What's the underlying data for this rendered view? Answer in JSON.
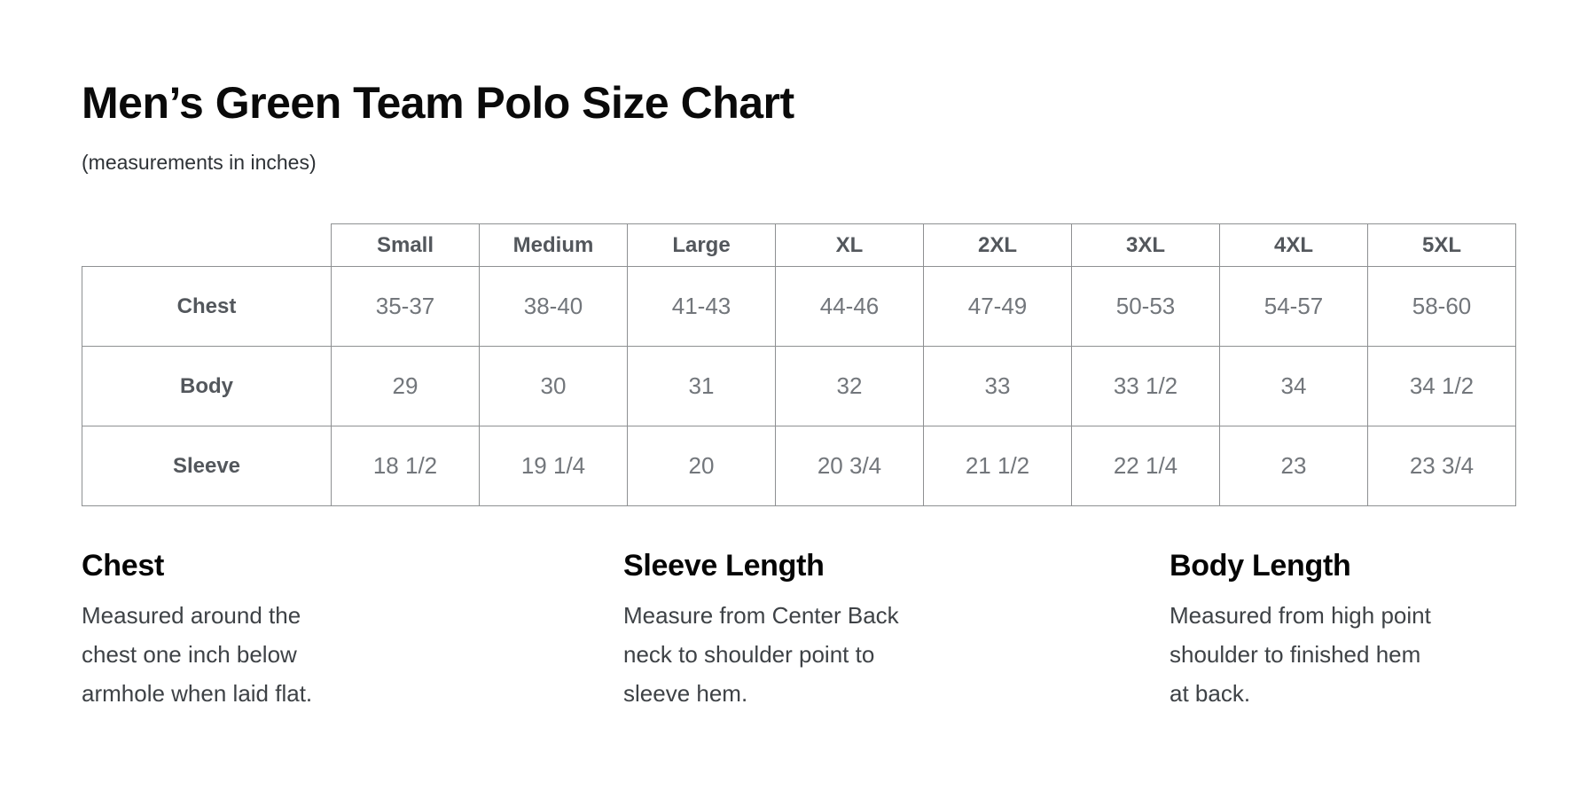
{
  "header": {
    "title": "Men’s Green Team Polo Size Chart",
    "subtitle": "(measurements in inches)"
  },
  "table": {
    "columns": [
      "Small",
      "Medium",
      "Large",
      "XL",
      "2XL",
      "3XL",
      "4XL",
      "5XL"
    ],
    "rows": [
      {
        "label": "Chest",
        "values": [
          "35-37",
          "38-40",
          "41-43",
          "44-46",
          "47-49",
          "50-53",
          "54-57",
          "58-60"
        ]
      },
      {
        "label": "Body",
        "values": [
          "29",
          "30",
          "31",
          "32",
          "33",
          "33 1/2",
          "34",
          "34 1/2"
        ]
      },
      {
        "label": "Sleeve",
        "values": [
          "18 1/2",
          "19 1/4",
          "20",
          "20 3/4",
          "21 1/2",
          "22 1/4",
          "23",
          "23 3/4"
        ]
      }
    ]
  },
  "guides": [
    {
      "title": "Chest",
      "description": "Measured around the\nchest one inch below\narmhole when laid flat."
    },
    {
      "title": "Sleeve Length",
      "description": "Measure from Center Back\nneck to shoulder point to\nsleeve hem."
    },
    {
      "title": "Body Length",
      "description": "Measured from high point\nshoulder to finished hem\nat back."
    }
  ],
  "colors": {
    "background": "#ffffff",
    "title_text": "#0a0a0a",
    "table_border": "#8e9092",
    "table_header_text": "#53575c",
    "table_value_text": "#72767b",
    "guide_body_text": "#3e4246"
  }
}
